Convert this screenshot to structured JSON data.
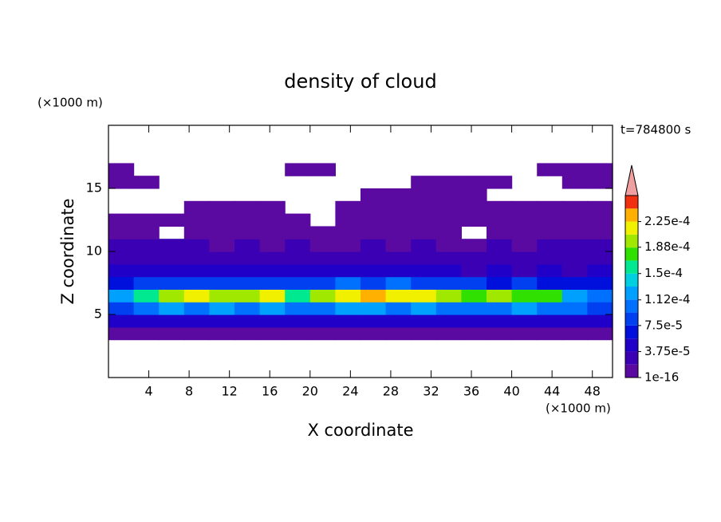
{
  "chart_data": {
    "type": "contour",
    "title": "density of cloud",
    "time_label": "t=784800 s",
    "xlabel": "X coordinate",
    "ylabel": "Z coordinate",
    "x_unit": "(×1000 m)",
    "y_unit": "(×1000 m)",
    "xlim": [
      0,
      50
    ],
    "ylim": [
      0,
      20
    ],
    "xticks": [
      4,
      8,
      12,
      16,
      20,
      24,
      28,
      32,
      36,
      40,
      44,
      48
    ],
    "yticks": [
      5,
      10,
      15
    ],
    "x": [
      1.25,
      3.75,
      6.25,
      8.75,
      11.25,
      13.75,
      16.25,
      18.75,
      21.25,
      23.75,
      26.25,
      28.75,
      31.25,
      33.75,
      36.25,
      38.75,
      41.25,
      43.75,
      46.25,
      48.75
    ],
    "z": [
      3.5,
      4.5,
      5.5,
      6.5,
      7.5,
      8.5,
      9.5,
      10.5,
      11.5,
      12.5,
      13.5,
      14.5,
      15.5,
      16.5
    ],
    "values": [
      [
        1e-05,
        1e-05,
        1e-05,
        1e-05,
        1e-05,
        1e-05,
        1e-05,
        1e-05,
        1e-05,
        1e-05,
        1e-05,
        1e-05,
        1e-05,
        1e-05,
        1e-05,
        1e-05,
        1e-05,
        1e-05,
        1e-05,
        1e-05
      ],
      [
        4.5e-05,
        5e-05,
        4.5e-05,
        5e-05,
        4.5e-05,
        5e-05,
        4.5e-05,
        5e-05,
        5.5e-05,
        4.5e-05,
        5e-05,
        4.5e-05,
        5e-05,
        5e-05,
        4.5e-05,
        5e-05,
        4.5e-05,
        5e-05,
        5e-05,
        4.5e-05
      ],
      [
        9e-05,
        0.00011,
        0.00012,
        0.00011,
        0.00012,
        0.00011,
        0.00012,
        0.0001,
        0.00011,
        0.00012,
        0.00012,
        0.00011,
        0.00012,
        0.00011,
        0.0001,
        0.00011,
        0.00012,
        0.00011,
        0.0001,
        9e-05
      ],
      [
        0.00012,
        0.00016,
        0.00019,
        0.00021,
        0.0002,
        0.00019,
        0.00021,
        0.00015,
        0.0002,
        0.00022,
        0.00023,
        0.00021,
        0.00022,
        0.00019,
        0.00017,
        0.00019,
        0.00018,
        0.00017,
        0.00013,
        0.00011
      ],
      [
        7e-05,
        8e-05,
        9e-05,
        8e-05,
        9e-05,
        8e-05,
        9e-05,
        8e-05,
        8e-05,
        0.0001,
        9e-05,
        0.0001,
        9e-05,
        8e-05,
        8e-05,
        7e-05,
        8e-05,
        7e-05,
        6e-05,
        6e-05
      ],
      [
        4e-05,
        4.5e-05,
        4e-05,
        4.5e-05,
        4e-05,
        4e-05,
        4.5e-05,
        4e-05,
        4e-05,
        4.5e-05,
        4e-05,
        4.5e-05,
        4e-05,
        4e-05,
        3.5e-05,
        4e-05,
        3.5e-05,
        4e-05,
        3.5e-05,
        4e-05
      ],
      [
        3e-05,
        2.5e-05,
        3e-05,
        2.5e-05,
        3e-05,
        2.5e-05,
        2.5e-05,
        3e-05,
        2.5e-05,
        3e-05,
        2.5e-05,
        3e-05,
        2.5e-05,
        2.5e-05,
        3e-05,
        2.5e-05,
        2.5e-05,
        2.5e-05,
        2.5e-05,
        3e-05
      ],
      [
        2e-05,
        2e-05,
        1.9e-05,
        2e-05,
        1.5e-05,
        1.9e-05,
        1.5e-05,
        1.9e-05,
        1.5e-05,
        1.5e-05,
        1.9e-05,
        1.5e-05,
        1.9e-05,
        1.5e-05,
        1.5e-05,
        1.9e-05,
        1.5e-05,
        1.9e-05,
        2e-05,
        1.9e-05
      ],
      [
        1e-05,
        8e-06,
        null,
        1e-05,
        1e-05,
        1e-05,
        1e-05,
        8e-06,
        8e-06,
        1e-05,
        1e-05,
        1e-05,
        1e-05,
        1e-05,
        null,
        1e-05,
        1e-05,
        1e-05,
        1.5e-05,
        1.5e-05
      ],
      [
        1e-05,
        1e-05,
        1e-05,
        1e-05,
        1e-05,
        1e-05,
        1e-05,
        8e-06,
        null,
        1e-05,
        1e-05,
        1e-05,
        1e-05,
        1e-05,
        1e-05,
        1e-05,
        1e-05,
        1e-05,
        1e-05,
        1e-05
      ],
      [
        null,
        null,
        null,
        1e-05,
        1e-05,
        1e-05,
        1e-05,
        null,
        null,
        1e-05,
        1e-05,
        1e-05,
        1e-05,
        1e-05,
        1e-05,
        1e-05,
        1e-05,
        1e-05,
        1e-05,
        1e-05
      ],
      [
        null,
        null,
        null,
        null,
        null,
        null,
        null,
        null,
        null,
        null,
        1e-05,
        1e-05,
        1e-05,
        1e-05,
        1e-05,
        null,
        null,
        null,
        null,
        null
      ],
      [
        1e-05,
        1e-05,
        null,
        null,
        null,
        null,
        null,
        null,
        null,
        null,
        null,
        null,
        1e-05,
        1e-05,
        1e-05,
        1e-05,
        null,
        null,
        1e-05,
        1e-05
      ],
      [
        1e-05,
        null,
        null,
        null,
        null,
        null,
        null,
        1e-05,
        1e-05,
        null,
        null,
        null,
        null,
        null,
        null,
        null,
        null,
        1e-05,
        1e-05,
        1e-05
      ]
    ],
    "colorbar": {
      "levels": [
        1e-16,
        1.875e-05,
        3.75e-05,
        5.625e-05,
        7.5e-05,
        9.375e-05,
        0.0001125,
        0.00013125,
        0.00015,
        0.00016875,
        0.0001875,
        0.00020625,
        0.000225,
        0.00024375,
        0.0002625
      ],
      "colors": [
        "#5a0aa0",
        "#3c00b4",
        "#2000c8",
        "#0010dc",
        "#0040f0",
        "#0070ff",
        "#00a0ff",
        "#00d0e0",
        "#00e890",
        "#30e000",
        "#a0e800",
        "#f0f000",
        "#ffb000",
        "#f03010"
      ],
      "extend_color": "#f0a0a0",
      "ticks": [
        {
          "value": 1e-16,
          "label": "1e-16"
        },
        {
          "value": 3.75e-05,
          "label": "3.75e-5"
        },
        {
          "value": 7.5e-05,
          "label": "7.5e-5"
        },
        {
          "value": 0.000112,
          "label": "1.12e-4"
        },
        {
          "value": 0.00015,
          "label": "1.5e-4"
        },
        {
          "value": 0.000188,
          "label": "1.88e-4"
        },
        {
          "value": 0.000225,
          "label": "2.25e-4"
        }
      ]
    }
  }
}
